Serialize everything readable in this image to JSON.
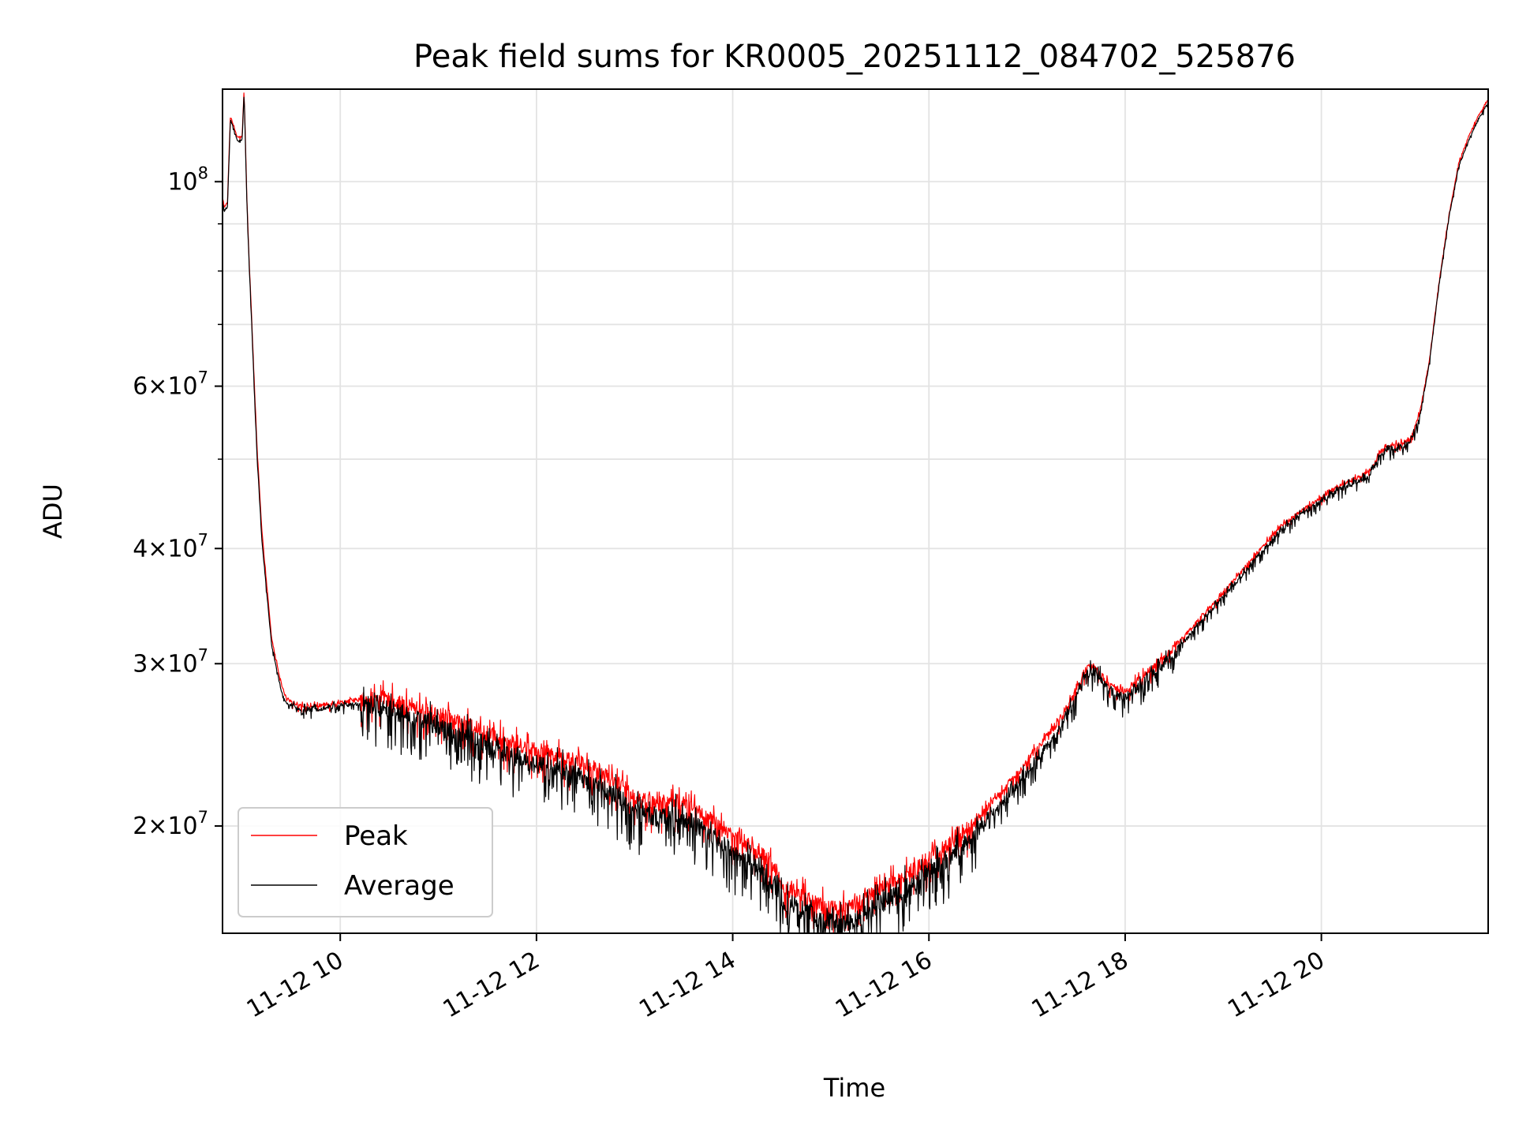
{
  "chart_data": {
    "type": "line",
    "title": "Peak field sums for KR0005_20251112_084702_525876",
    "xlabel": "Time",
    "ylabel": "ADU",
    "yscale": "log",
    "grid": true,
    "legend_position": "bottom-left",
    "x_unit": "hours on 11-12",
    "xlim": [
      8.8,
      21.7
    ],
    "ylim": [
      15300000,
      126000000
    ],
    "x_ticks": [
      {
        "value": 10,
        "label": "11-12 10"
      },
      {
        "value": 12,
        "label": "11-12 12"
      },
      {
        "value": 14,
        "label": "11-12 14"
      },
      {
        "value": 16,
        "label": "11-12 16"
      },
      {
        "value": 18,
        "label": "11-12 18"
      },
      {
        "value": 20,
        "label": "11-12 20"
      }
    ],
    "y_ticks": [
      {
        "value": 20000000,
        "mantissa": "2",
        "exp": "7"
      },
      {
        "value": 30000000,
        "mantissa": "3",
        "exp": "7"
      },
      {
        "value": 40000000,
        "mantissa": "4",
        "exp": "7"
      },
      {
        "value": 60000000,
        "mantissa": "6",
        "exp": "7"
      },
      {
        "value": 100000000,
        "mantissa": "",
        "exp": "8"
      }
    ],
    "y_minor_ticks": [
      50000000,
      70000000,
      80000000,
      90000000
    ],
    "series": [
      {
        "name": "Peak",
        "color": "#ff0000",
        "noise": 0.045,
        "x": [
          8.8,
          8.82,
          8.85,
          8.88,
          8.95,
          9.0,
          9.02,
          9.05,
          9.07,
          9.1,
          9.15,
          9.2,
          9.3,
          9.4,
          9.45,
          9.55,
          9.65,
          9.8,
          10.0,
          10.2,
          10.4,
          10.6,
          10.8,
          11.0,
          11.2,
          11.4,
          11.6,
          11.8,
          12.0,
          12.2,
          12.4,
          12.6,
          12.8,
          13.0,
          13.2,
          13.4,
          13.6,
          13.8,
          14.0,
          14.2,
          14.4,
          14.5,
          14.7,
          14.9,
          15.1,
          15.3,
          15.5,
          15.7,
          15.9,
          16.1,
          16.3,
          16.5,
          16.7,
          16.9,
          17.1,
          17.3,
          17.5,
          17.6,
          17.7,
          17.8,
          17.9,
          18.0,
          18.2,
          18.4,
          18.6,
          18.8,
          19.0,
          19.2,
          19.4,
          19.6,
          19.8,
          20.0,
          20.2,
          20.4,
          20.5,
          20.6,
          20.65,
          20.7,
          20.8,
          20.9,
          21.0,
          21.1,
          21.2,
          21.3,
          21.4,
          21.5,
          21.6,
          21.7
        ],
        "values": [
          96000000,
          94000000,
          95000000,
          118000000,
          112000000,
          112000000,
          126000000,
          95000000,
          83000000,
          70000000,
          52000000,
          42000000,
          32000000,
          28500000,
          27500000,
          27200000,
          27000000,
          27100000,
          27300000,
          27500000,
          27800000,
          27400000,
          27000000,
          26700000,
          26200000,
          25700000,
          25200000,
          24700000,
          24400000,
          24100000,
          23700000,
          23300000,
          22600000,
          21700000,
          21300000,
          21500000,
          21100000,
          20400000,
          19700000,
          19100000,
          18400000,
          17400000,
          17000000,
          16600000,
          16400000,
          16700000,
          17200000,
          17700000,
          18300000,
          18900000,
          19600000,
          20500000,
          21600000,
          22900000,
          24300000,
          25900000,
          28100000,
          29800000,
          29900000,
          28800000,
          28300000,
          28100000,
          29300000,
          30600000,
          32200000,
          34000000,
          35900000,
          38000000,
          40300000,
          42500000,
          44100000,
          45500000,
          47000000,
          48000000,
          48800000,
          51000000,
          51600000,
          51800000,
          52100000,
          52600000,
          56000000,
          64000000,
          78000000,
          92000000,
          105000000,
          112000000,
          118000000,
          123000000
        ]
      },
      {
        "name": "Average",
        "color": "#000000",
        "noise": 0.06,
        "x": [
          8.8,
          8.82,
          8.85,
          8.88,
          8.95,
          9.0,
          9.02,
          9.05,
          9.07,
          9.1,
          9.15,
          9.2,
          9.3,
          9.4,
          9.45,
          9.55,
          9.65,
          9.8,
          10.0,
          10.2,
          10.4,
          10.6,
          10.8,
          11.0,
          11.2,
          11.4,
          11.6,
          11.8,
          12.0,
          12.2,
          12.4,
          12.6,
          12.8,
          13.0,
          13.2,
          13.4,
          13.6,
          13.8,
          14.0,
          14.2,
          14.4,
          14.5,
          14.7,
          14.9,
          15.1,
          15.3,
          15.5,
          15.7,
          15.9,
          16.1,
          16.3,
          16.5,
          16.7,
          16.9,
          17.1,
          17.3,
          17.5,
          17.6,
          17.7,
          17.8,
          17.9,
          18.0,
          18.2,
          18.4,
          18.6,
          18.8,
          19.0,
          19.2,
          19.4,
          19.6,
          19.8,
          20.0,
          20.2,
          20.4,
          20.5,
          20.6,
          20.65,
          20.7,
          20.8,
          20.9,
          21.0,
          21.1,
          21.2,
          21.3,
          21.4,
          21.5,
          21.6,
          21.7
        ],
        "values": [
          95000000,
          93000000,
          94000000,
          117000000,
          111000000,
          111000000,
          125000000,
          94000000,
          82000000,
          69000000,
          51000000,
          41000000,
          31500000,
          28000000,
          27200000,
          26900000,
          26800000,
          26900000,
          27100000,
          27200000,
          27400000,
          26800000,
          26300000,
          26000000,
          25400000,
          24900000,
          24400000,
          23900000,
          23600000,
          23300000,
          22900000,
          22500000,
          21800000,
          20900000,
          20600000,
          20800000,
          20300000,
          19600000,
          18900000,
          18300000,
          17600000,
          16800000,
          16400000,
          16000000,
          15800000,
          16100000,
          16600000,
          17100000,
          17700000,
          18300000,
          19000000,
          19900000,
          21000000,
          22300000,
          23700000,
          25300000,
          27600000,
          29400000,
          29600000,
          28500000,
          27900000,
          27700000,
          28900000,
          30200000,
          31800000,
          33600000,
          35500000,
          37600000,
          39900000,
          42100000,
          43700000,
          45100000,
          46600000,
          47600000,
          48400000,
          50500000,
          51100000,
          51300000,
          51700000,
          52200000,
          55500000,
          63500000,
          77500000,
          91500000,
          104000000,
          111000000,
          117000000,
          122000000
        ]
      }
    ]
  }
}
